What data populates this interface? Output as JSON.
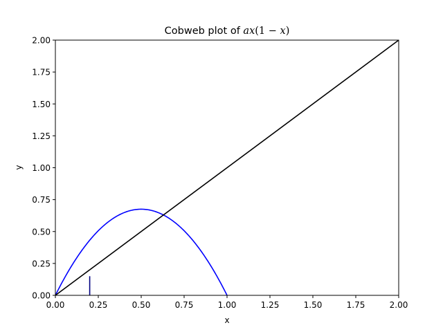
{
  "chart_data": {
    "type": "line",
    "title": "Cobweb plot of ",
    "title_math": {
      "part1": "ax",
      "part2": "(1 − ",
      "part3": "x",
      "part4": ")"
    },
    "xlabel": "x",
    "ylabel": "y",
    "xlim": [
      0,
      2
    ],
    "ylim": [
      0,
      2
    ],
    "grid": false,
    "x_ticks": [
      "0.00",
      "0.25",
      "0.50",
      "0.75",
      "1.00",
      "1.25",
      "1.50",
      "1.75",
      "2.00"
    ],
    "y_ticks": [
      "0.00",
      "0.25",
      "0.50",
      "0.75",
      "1.00",
      "1.25",
      "1.50",
      "1.75",
      "2.00"
    ],
    "a": 2.7,
    "series": [
      {
        "type": "function",
        "expression": "a*x*(1-x)",
        "x_range": [
          0,
          1
        ],
        "color": "#0000ff"
      },
      {
        "type": "line",
        "x": [
          0,
          2
        ],
        "y": [
          0,
          2
        ],
        "color": "#000000"
      },
      {
        "type": "line",
        "x": [
          0.2,
          0.2
        ],
        "y": [
          0,
          0.15
        ],
        "color": "#000080"
      }
    ]
  }
}
